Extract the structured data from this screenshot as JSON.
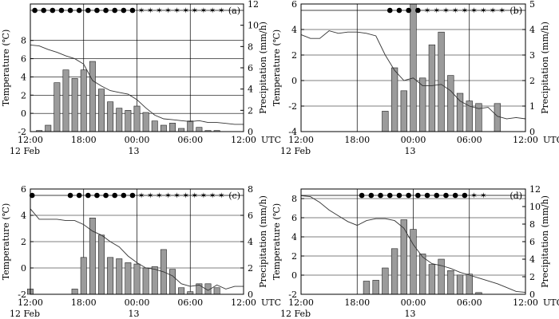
{
  "chart_data": [
    {
      "panel": "(a)",
      "type": "bar",
      "time_unit": "UTC",
      "x_ticks": [
        "12:00",
        "18:00",
        "00:00",
        "06:00",
        "12:00"
      ],
      "x_sublabels": {
        "left": "12 Feb",
        "mid": "13"
      },
      "xlabel_right": "UTC",
      "xlim": [
        12,
        36
      ],
      "left_axis": {
        "label": "Temperature (℃)",
        "ylim": [
          -2,
          12
        ],
        "ticks": [
          -2,
          0,
          2,
          4,
          6,
          8
        ]
      },
      "right_axis": {
        "label": "Precipitation (mm/h)",
        "ylim": [
          0,
          12
        ],
        "ticks": [
          0,
          2,
          4,
          6,
          8,
          10,
          12
        ]
      },
      "bars": {
        "name": "precipitation",
        "unit": "mm/h",
        "x": [
          13,
          14,
          15,
          16,
          17,
          18,
          19,
          20,
          21,
          22,
          23,
          24,
          25,
          26,
          27,
          28,
          29,
          30,
          31,
          32,
          33
        ],
        "values": [
          0.1,
          0.6,
          4.6,
          5.8,
          5.0,
          5.8,
          6.6,
          4.0,
          2.8,
          2.2,
          2.0,
          2.4,
          1.8,
          1.0,
          0.6,
          0.8,
          0.3,
          1.0,
          0.4,
          0.1,
          0.1
        ]
      },
      "line": {
        "name": "temperature",
        "unit": "℃",
        "x": [
          12,
          13,
          14,
          15,
          16,
          17,
          18,
          19,
          20,
          21,
          22,
          23,
          24,
          25,
          26,
          27,
          28,
          29,
          30,
          31,
          32,
          33,
          34,
          35,
          36
        ],
        "values": [
          7.5,
          7.4,
          7.0,
          6.7,
          6.3,
          6.0,
          5.4,
          3.6,
          3.0,
          2.5,
          2.3,
          2.1,
          1.5,
          0.6,
          -0.2,
          -0.6,
          -0.7,
          -0.8,
          -0.9,
          -0.8,
          -1.0,
          -1.0,
          -1.1,
          -1.2,
          -1.2
        ]
      },
      "weather_symbols": {
        "rain": {
          "symbol": "●",
          "hours": [
            12.5,
            13.5,
            14.5,
            15.5,
            16.5,
            17.5,
            18.5,
            19.5,
            20.5,
            21.5,
            22.5,
            23.5
          ]
        },
        "snow": {
          "symbol": "✶",
          "hours": [
            24.5,
            25.5,
            26.5,
            27.5,
            28.5,
            29.5,
            30.5,
            31.5,
            32.5,
            33.5
          ]
        }
      }
    },
    {
      "panel": "(b)",
      "type": "bar",
      "time_unit": "UTC",
      "x_ticks": [
        "12:00",
        "18:00",
        "00:00",
        "06:00",
        "12:00"
      ],
      "x_sublabels": {
        "left": "12 Feb",
        "mid": "13"
      },
      "xlabel_right": "UTC",
      "xlim": [
        12,
        36
      ],
      "left_axis": {
        "label": "Temperature (℃)",
        "ylim": [
          -4,
          6
        ],
        "ticks": [
          -4,
          -2,
          0,
          2,
          4,
          6
        ]
      },
      "right_axis": {
        "label": "Precipitation (mm/h)",
        "ylim": [
          0,
          5
        ],
        "ticks": [
          0,
          1,
          2,
          3,
          4,
          5
        ]
      },
      "bars": {
        "name": "precipitation",
        "unit": "mm/h",
        "x": [
          21,
          22,
          23,
          24,
          25,
          26,
          27,
          28,
          29,
          30,
          31,
          33
        ],
        "values": [
          0.8,
          2.5,
          1.6,
          5.0,
          2.1,
          3.4,
          3.9,
          2.2,
          1.5,
          1.2,
          1.1,
          1.1
        ]
      },
      "line": {
        "name": "temperature",
        "unit": "℃",
        "x": [
          12,
          13,
          14,
          15,
          16,
          17,
          18,
          19,
          20,
          21,
          22,
          23,
          24,
          25,
          26,
          27,
          28,
          29,
          30,
          31,
          32,
          33,
          34,
          35,
          36
        ],
        "values": [
          3.6,
          3.3,
          3.3,
          3.9,
          3.7,
          3.8,
          3.8,
          3.7,
          3.5,
          2.0,
          0.8,
          0.0,
          0.2,
          -0.4,
          -0.4,
          -0.3,
          -0.8,
          -1.6,
          -2.0,
          -2.2,
          -2.1,
          -2.8,
          -3.0,
          -2.9,
          -3.0
        ]
      },
      "weather_symbols": {
        "rain": {
          "symbol": "●",
          "hours": [
            21.5,
            22.5,
            23.5,
            24.5
          ]
        },
        "snow": {
          "symbol": "✶",
          "hours": [
            25.5,
            26.5,
            27.5,
            28.5,
            29.5,
            30.5,
            31.5,
            32.5,
            33.5
          ]
        }
      }
    },
    {
      "panel": "(c)",
      "type": "bar",
      "time_unit": "UTC",
      "x_ticks": [
        "12:00",
        "18:00",
        "00:00",
        "06:00",
        "12:00"
      ],
      "x_sublabels": {
        "left": "12 Feb",
        "mid": "13"
      },
      "xlabel_right": "UTC",
      "xlim": [
        12,
        36
      ],
      "left_axis": {
        "label": "Temperature (℃)",
        "ylim": [
          -2,
          6
        ],
        "ticks": [
          -2,
          0,
          2,
          4,
          6
        ]
      },
      "right_axis": {
        "label": "Precipitation (mm/h)",
        "ylim": [
          0,
          8
        ],
        "ticks": [
          0,
          2,
          4,
          6,
          8
        ]
      },
      "bars": {
        "name": "precipitation",
        "unit": "mm/h",
        "x": [
          12,
          17,
          18,
          19,
          20,
          21,
          22,
          23,
          24,
          25,
          26,
          27,
          28,
          29,
          30,
          31,
          32,
          33
        ],
        "values": [
          0.4,
          0.4,
          2.8,
          5.8,
          4.5,
          2.8,
          2.7,
          2.4,
          2.3,
          2.0,
          2.1,
          3.4,
          1.9,
          0.5,
          0.2,
          0.8,
          0.8,
          0.5
        ]
      },
      "line": {
        "name": "temperature",
        "unit": "℃",
        "x": [
          12,
          13,
          14,
          15,
          16,
          17,
          18,
          19,
          20,
          21,
          22,
          23,
          24,
          25,
          26,
          27,
          28,
          29,
          30,
          31,
          32,
          33,
          34,
          35,
          36
        ],
        "values": [
          4.5,
          3.7,
          3.7,
          3.7,
          3.6,
          3.6,
          3.3,
          2.8,
          2.5,
          2.0,
          1.6,
          0.9,
          0.4,
          0.0,
          -0.1,
          -0.3,
          -0.6,
          -1.2,
          -1.4,
          -1.3,
          -1.7,
          -1.3,
          -1.6,
          -1.4,
          -1.4
        ]
      },
      "weather_symbols": {
        "rain": {
          "symbol": "●",
          "hours": [
            12.2,
            16.5,
            17.5,
            18.5,
            19.5,
            20.5,
            21.5,
            22.5,
            23.5
          ]
        },
        "snow": {
          "symbol": "✶",
          "hours": [
            24.5,
            25.5,
            26.5,
            27.5,
            28.5,
            29.5,
            30.5,
            31.5,
            32.5,
            33.5
          ]
        }
      }
    },
    {
      "panel": "(d)",
      "type": "bar",
      "time_unit": "UTC",
      "x_ticks": [
        "12:00",
        "18:00",
        "00:00",
        "06:00",
        "12:00"
      ],
      "x_sublabels": {
        "left": "12 Feb",
        "mid": "13"
      },
      "xlabel_right": "UTC",
      "xlim": [
        12,
        36
      ],
      "left_axis": {
        "label": "Temperature (℃)",
        "ylim": [
          -2,
          9
        ],
        "ticks": [
          -2,
          0,
          2,
          4,
          6,
          8
        ]
      },
      "right_axis": {
        "label": "Precipitation (mm/h)",
        "ylim": [
          0,
          12
        ],
        "ticks": [
          0,
          2,
          4,
          6,
          8,
          10,
          12
        ]
      },
      "bars": {
        "name": "precipitation",
        "unit": "mm/h",
        "x": [
          19,
          20,
          21,
          22,
          23,
          24,
          25,
          26,
          27,
          28,
          29,
          30,
          31
        ],
        "values": [
          1.5,
          1.6,
          3.0,
          5.2,
          8.5,
          7.4,
          4.6,
          3.4,
          4.0,
          2.7,
          2.2,
          2.3,
          0.2
        ]
      },
      "line": {
        "name": "temperature",
        "unit": "℃",
        "x": [
          12,
          13,
          14,
          15,
          16,
          17,
          18,
          19,
          20,
          21,
          22,
          23,
          24,
          25,
          26,
          27,
          28,
          29,
          30,
          31,
          32,
          33,
          34,
          35,
          36
        ],
        "values": [
          8.3,
          8.2,
          7.6,
          6.8,
          6.2,
          5.6,
          5.2,
          5.7,
          5.9,
          5.9,
          5.7,
          4.9,
          3.2,
          1.9,
          1.2,
          1.0,
          0.7,
          0.3,
          0.0,
          -0.3,
          -0.6,
          -0.9,
          -1.3,
          -1.7,
          -1.8
        ]
      },
      "weather_symbols": {
        "rain": {
          "symbol": "●",
          "hours": [
            18.5,
            19.5,
            20.5,
            21.5,
            22.5,
            23.5,
            24.5,
            25.5,
            26.5,
            27.5,
            28.5,
            29.5
          ]
        },
        "snow": {
          "symbol": "✶",
          "hours": [
            30.5,
            31.5
          ]
        }
      }
    }
  ]
}
